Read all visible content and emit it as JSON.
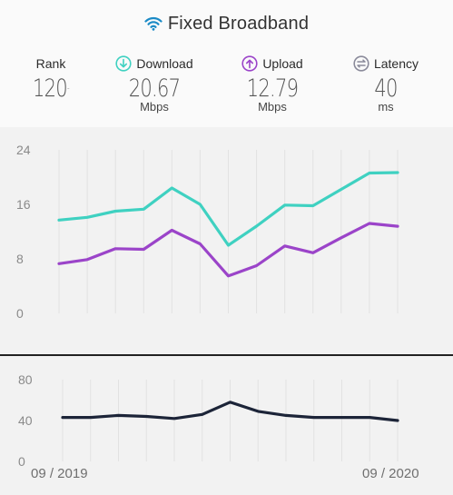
{
  "header": {
    "title": "Fixed Broadband",
    "icon": "wifi-icon",
    "accent": "#1a8ac6"
  },
  "stats": {
    "rank": {
      "label": "Rank",
      "value": "120",
      "suffix": "-"
    },
    "download": {
      "label": "Download",
      "value": "20.67",
      "unit": "Mbps",
      "color": "#3fd1c1"
    },
    "upload": {
      "label": "Upload",
      "value": "12.79",
      "unit": "Mbps",
      "color": "#9b44c9"
    },
    "latency": {
      "label": "Latency",
      "value": "40",
      "unit": "ms",
      "color": "#8a8a9a"
    }
  },
  "dates": {
    "start": "09 / 2019",
    "end": "09 / 2020"
  },
  "chart_data": [
    {
      "type": "line",
      "x": [
        "09/2019",
        "10/2019",
        "11/2019",
        "12/2019",
        "01/2020",
        "02/2020",
        "03/2020",
        "04/2020",
        "05/2020",
        "06/2020",
        "07/2020",
        "08/2020",
        "09/2020"
      ],
      "ylim": [
        0,
        24
      ],
      "yticks": [
        0,
        8,
        16,
        24
      ],
      "grid": true,
      "series": [
        {
          "name": "Download",
          "color": "#3fd1c1",
          "values": [
            13.7,
            14.1,
            15.0,
            15.3,
            18.4,
            16.0,
            10.0,
            12.8,
            15.9,
            15.8,
            18.2,
            20.6,
            20.67
          ]
        },
        {
          "name": "Upload",
          "color": "#9b44c9",
          "values": [
            7.3,
            7.9,
            9.5,
            9.4,
            12.2,
            10.2,
            5.5,
            7.0,
            9.9,
            8.9,
            11.1,
            13.2,
            12.79
          ]
        }
      ]
    },
    {
      "type": "line",
      "x": [
        "09/2019",
        "10/2019",
        "11/2019",
        "12/2019",
        "01/2020",
        "02/2020",
        "03/2020",
        "04/2020",
        "05/2020",
        "06/2020",
        "07/2020",
        "08/2020",
        "09/2020"
      ],
      "ylim": [
        0,
        80
      ],
      "yticks": [
        0,
        40,
        80
      ],
      "grid": true,
      "series": [
        {
          "name": "Latency",
          "color": "#1c2438",
          "values": [
            43,
            43,
            45,
            44,
            42,
            46,
            58,
            49,
            45,
            43,
            43,
            43,
            40
          ]
        }
      ]
    }
  ]
}
